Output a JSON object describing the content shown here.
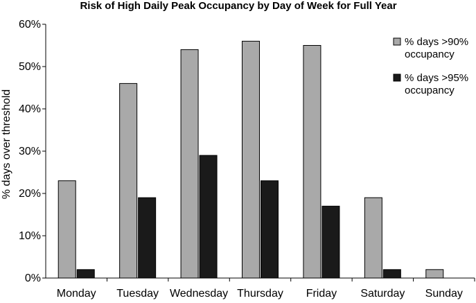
{
  "chart_data": {
    "type": "bar",
    "title": "Risk of High Daily Peak Occupancy by Day of Week for Full Year",
    "xlabel": "",
    "ylabel": "% days over threshold",
    "ylim": [
      0,
      60
    ],
    "yticks": [
      "0%",
      "10%",
      "20%",
      "30%",
      "40%",
      "50%",
      "60%"
    ],
    "categories": [
      "Monday",
      "Tuesday",
      "Wednesday",
      "Thursday",
      "Friday",
      "Saturday",
      "Sunday"
    ],
    "series": [
      {
        "name": "% days >90% occupancy",
        "legend_lines": [
          "% days >90%",
          "occupancy"
        ],
        "color": "#a9a9a9",
        "values": [
          23,
          46,
          54,
          56,
          55,
          19,
          2
        ]
      },
      {
        "name": "% days >95% occupancy",
        "legend_lines": [
          "% days >95%",
          "occupancy"
        ],
        "color": "#1a1a1a",
        "values": [
          2,
          19,
          29,
          23,
          17,
          2,
          0
        ]
      }
    ],
    "grid": false,
    "legend_position": "right"
  }
}
